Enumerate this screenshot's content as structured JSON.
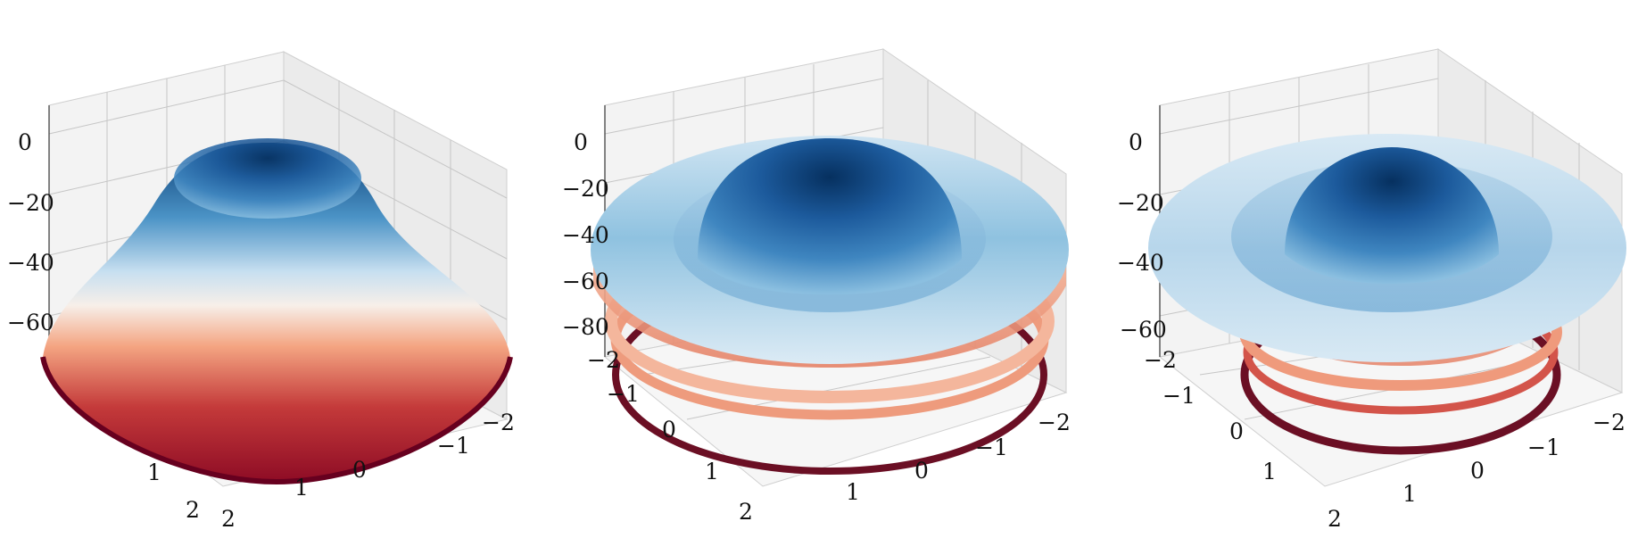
{
  "figure": {
    "panel_count": 3,
    "colormap": "RdBu",
    "colormap_stops": [
      "#67001f",
      "#b2182b",
      "#d6604d",
      "#f4a582",
      "#fddbc7",
      "#f7f7f7",
      "#d1e5f0",
      "#92c5de",
      "#4393c3",
      "#2166ac",
      "#053061"
    ]
  },
  "chart_data": [
    {
      "type": "scatter",
      "projection": "3d",
      "title": "",
      "xlabel": "",
      "ylabel": "",
      "zlabel": "",
      "z_ticks": [
        "0",
        "−20",
        "−40",
        "−60"
      ],
      "x_ticks": [
        "−2",
        "−1",
        "0",
        "1",
        "2"
      ],
      "y_ticks": [
        "1",
        "2"
      ],
      "xlim": [
        -2,
        2
      ],
      "ylim": [
        -2,
        2
      ],
      "zlim": [
        -80,
        0
      ],
      "surface": "single dome: z = 0 at the top falling to about −70 at radius 2",
      "color_by": "z",
      "grid": true
    },
    {
      "type": "scatter",
      "projection": "3d",
      "title": "",
      "xlabel": "",
      "ylabel": "",
      "zlabel": "",
      "z_ticks": [
        "0",
        "−20",
        "−40",
        "−60",
        "−80"
      ],
      "x_ticks": [
        "−2",
        "−1",
        "0",
        "1"
      ],
      "y_ticks": [
        "−2",
        "−1",
        "0",
        "1",
        "2"
      ],
      "xlim": [
        -2,
        2
      ],
      "ylim": [
        -2,
        2
      ],
      "zlim": [
        -100,
        0
      ],
      "surface": "central dome with a wide flat ring and lower concentric rings down to about −100",
      "color_by": "z",
      "grid": true
    },
    {
      "type": "scatter",
      "projection": "3d",
      "title": "",
      "xlabel": "",
      "ylabel": "",
      "zlabel": "",
      "z_ticks": [
        "0",
        "−20",
        "−40",
        "−60"
      ],
      "x_ticks": [
        "−2",
        "−1",
        "0",
        "1",
        "2"
      ],
      "y_ticks": [
        "−2",
        "−1",
        "0",
        "1",
        "2"
      ],
      "xlim": [
        -2,
        2
      ],
      "ylim": [
        -2,
        2
      ],
      "zlim": [
        -70,
        0
      ],
      "surface": "small central dome, broad flat ring, and lower rings down to about −70",
      "color_by": "z",
      "grid": true
    }
  ]
}
